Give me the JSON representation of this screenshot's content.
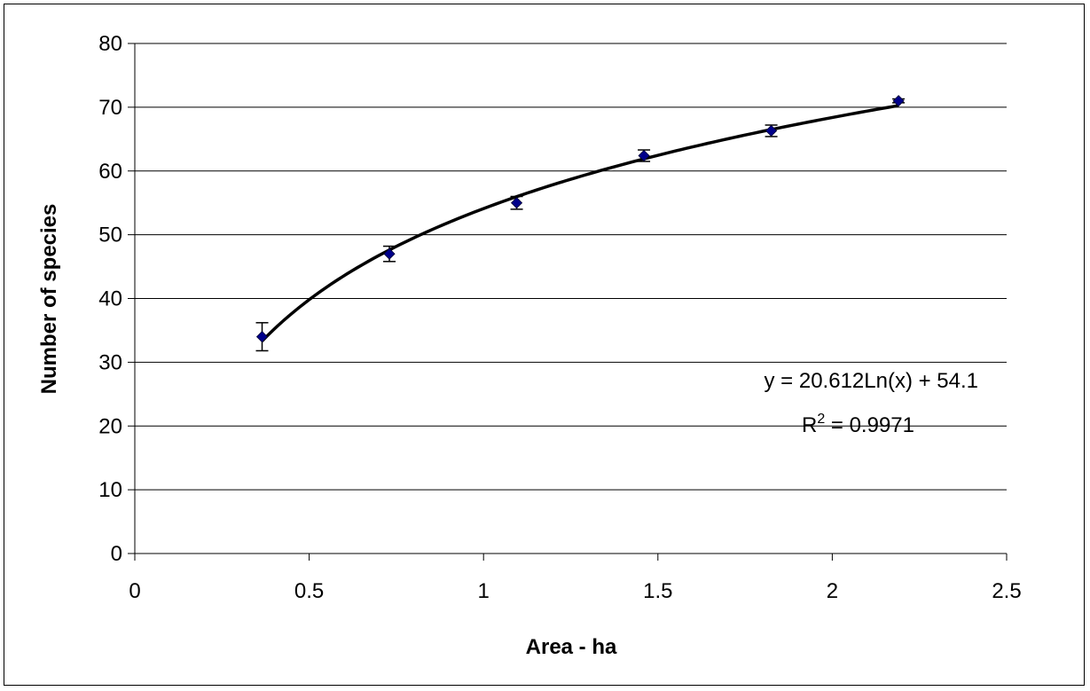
{
  "chart_data": {
    "type": "scatter",
    "xlabel": "Area - ha",
    "ylabel": "Number of species",
    "xlim": [
      0,
      2.5
    ],
    "ylim": [
      0,
      80
    ],
    "x_ticks": [
      "0",
      "0.5",
      "1",
      "1.5",
      "2",
      "2.5"
    ],
    "y_ticks": [
      "0",
      "10",
      "20",
      "30",
      "40",
      "50",
      "60",
      "70",
      "80"
    ],
    "grid": "horizontal",
    "series": [
      {
        "points": [
          {
            "x": 0.365,
            "y": 34.0,
            "err": 2.2
          },
          {
            "x": 0.73,
            "y": 47.0,
            "err": 1.2
          },
          {
            "x": 1.095,
            "y": 55.0,
            "err": 1.0
          },
          {
            "x": 1.46,
            "y": 62.4,
            "err": 0.9
          },
          {
            "x": 1.825,
            "y": 66.3,
            "err": 0.9
          },
          {
            "x": 2.19,
            "y": 71.0,
            "err": 0.3
          }
        ],
        "marker_color": "#00008B"
      }
    ],
    "trendline": {
      "type": "logarithmic",
      "a": 20.612,
      "b": 54.1,
      "x_range": [
        0.365,
        2.19
      ],
      "color": "#000000"
    },
    "annotations": {
      "equation": "y = 20.612Ln(x) + 54.1",
      "r2_prefix": "R",
      "r2_exp": "2",
      "r2_suffix": " = 0.9971"
    }
  }
}
